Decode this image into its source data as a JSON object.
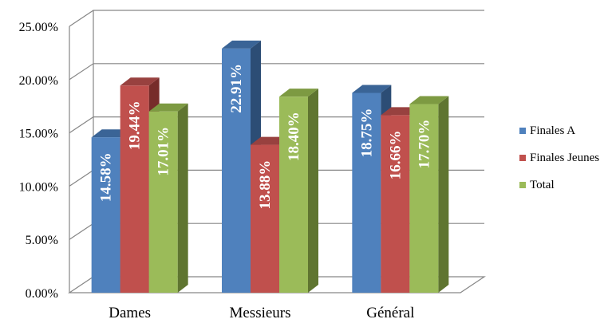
{
  "chart_data": {
    "type": "bar",
    "categories": [
      "Dames",
      "Messieurs",
      "Général"
    ],
    "series": [
      {
        "name": "Finales A",
        "values": [
          14.58,
          22.91,
          18.75
        ],
        "labels": [
          "14.58%",
          "22.91%",
          "18.75%"
        ],
        "color": "#4F81BD",
        "dark": "#2C4D75",
        "top": "#3A6496"
      },
      {
        "name": "Finales Jeunes",
        "values": [
          19.44,
          13.88,
          16.66
        ],
        "labels": [
          "19.44%",
          "13.88%",
          "16.66%"
        ],
        "color": "#C0504D",
        "dark": "#772C2A",
        "top": "#98413F"
      },
      {
        "name": "Total",
        "values": [
          17.01,
          18.4,
          17.7
        ],
        "labels": [
          "17.01%",
          "18.40%",
          "17.70%"
        ],
        "color": "#9BBB59",
        "dark": "#5F7530",
        "top": "#7D9A42"
      }
    ],
    "ylim": [
      0,
      25
    ],
    "yticks": [
      "0.00%",
      "5.00%",
      "10.00%",
      "15.00%",
      "20.00%",
      "25.00%"
    ],
    "grid": true,
    "legend": "right"
  }
}
